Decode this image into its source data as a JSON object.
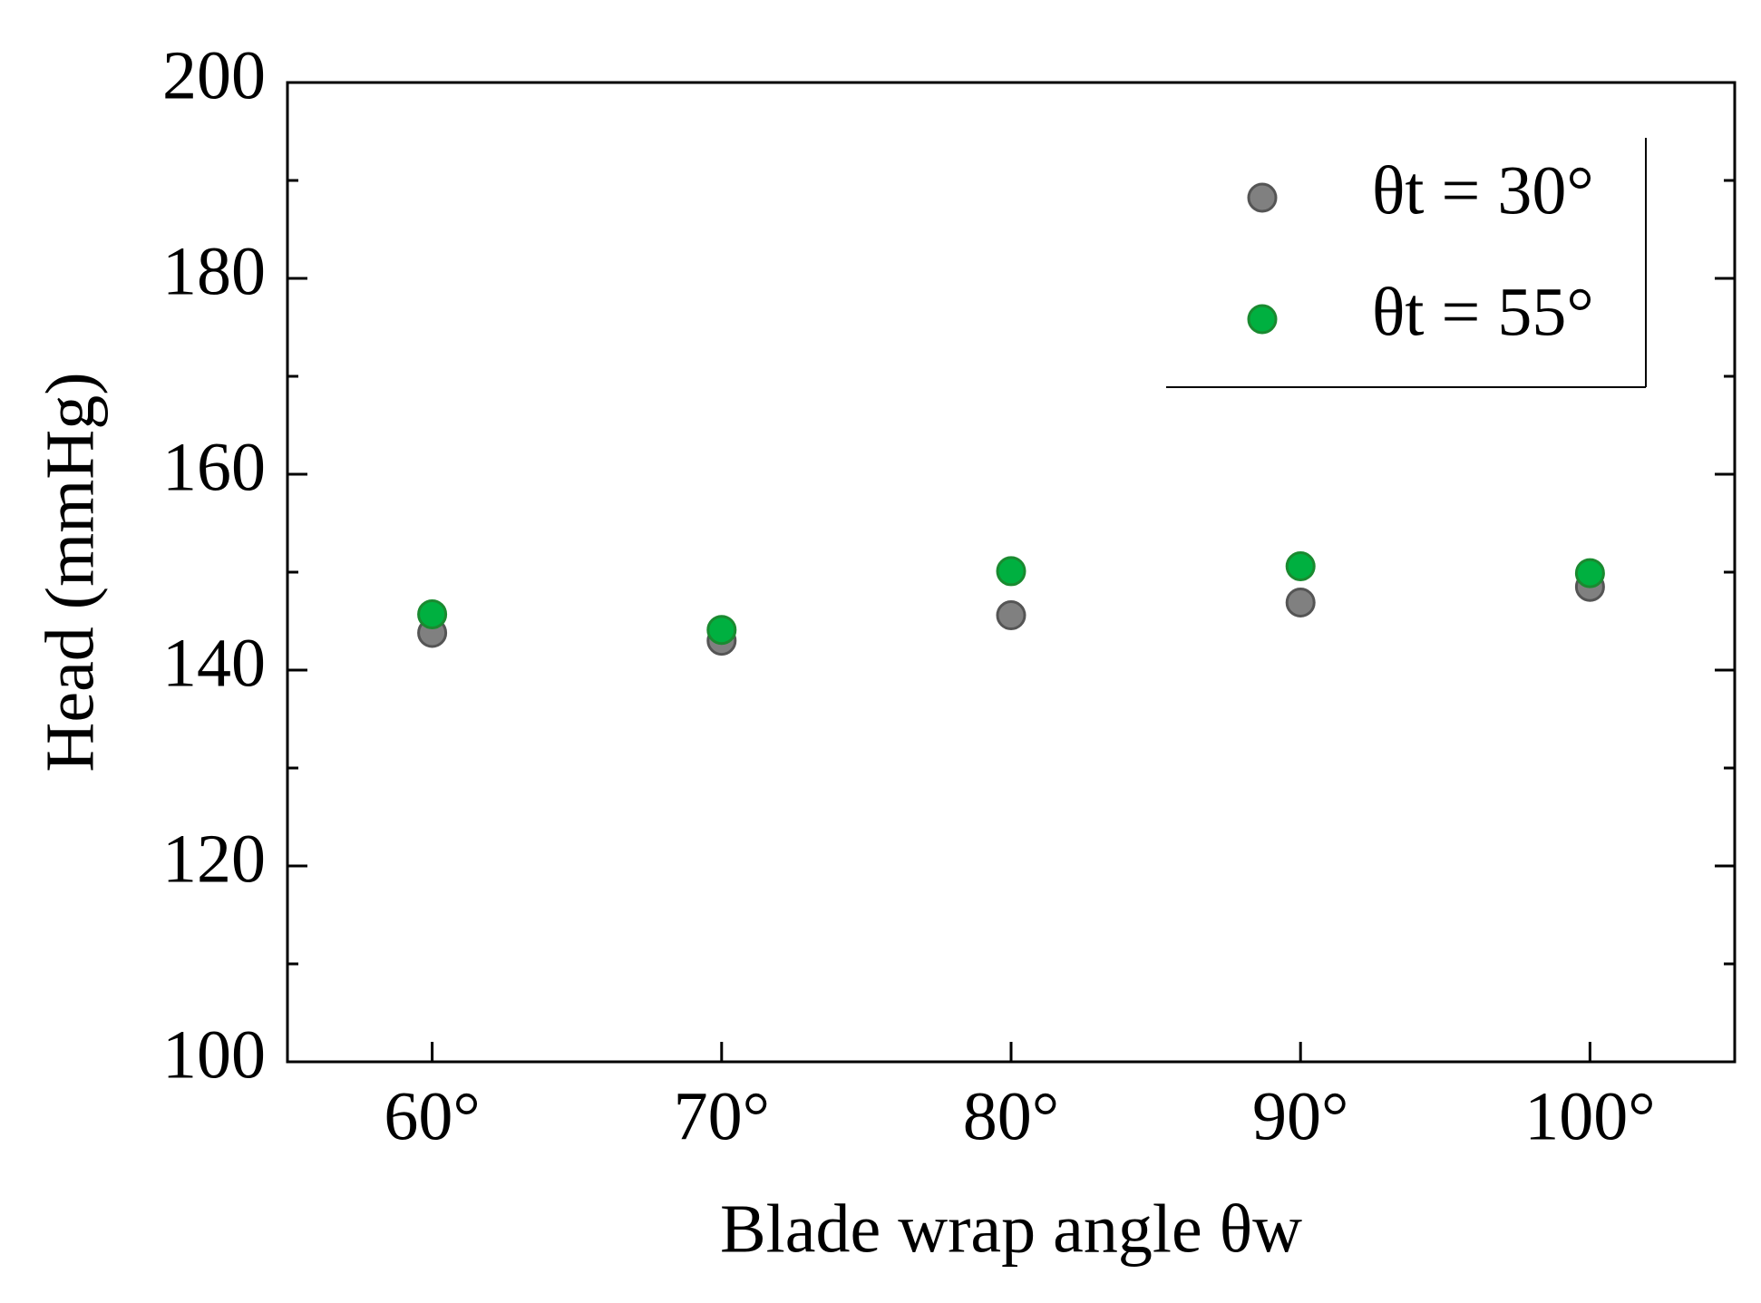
{
  "chart_data": {
    "type": "scatter",
    "x_label": "Blade wrap angle θw",
    "y_label": "Head (mmHg)",
    "xlim": [
      55,
      105
    ],
    "xticks": [
      {
        "value": 60,
        "label": "60°"
      },
      {
        "value": 70,
        "label": "70°"
      },
      {
        "value": 80,
        "label": "80°"
      },
      {
        "value": 90,
        "label": "90°"
      },
      {
        "value": 100,
        "label": "100°"
      }
    ],
    "ylim": [
      100,
      200
    ],
    "yticks": [
      100,
      120,
      140,
      160,
      180,
      200
    ],
    "yminorticks": [
      110,
      130,
      150,
      170,
      190
    ],
    "legend": "upper right",
    "series": [
      {
        "name": "θt = 30°",
        "color": "#808080",
        "x": [
          60,
          70,
          80,
          90,
          100
        ],
        "values": [
          143.8,
          143.0,
          145.6,
          146.9,
          148.5
        ]
      },
      {
        "name": "θt = 55°",
        "color": "#00b040",
        "x": [
          60,
          70,
          80,
          90,
          100
        ],
        "values": [
          145.7,
          144.1,
          150.1,
          150.6,
          149.9
        ]
      }
    ]
  }
}
